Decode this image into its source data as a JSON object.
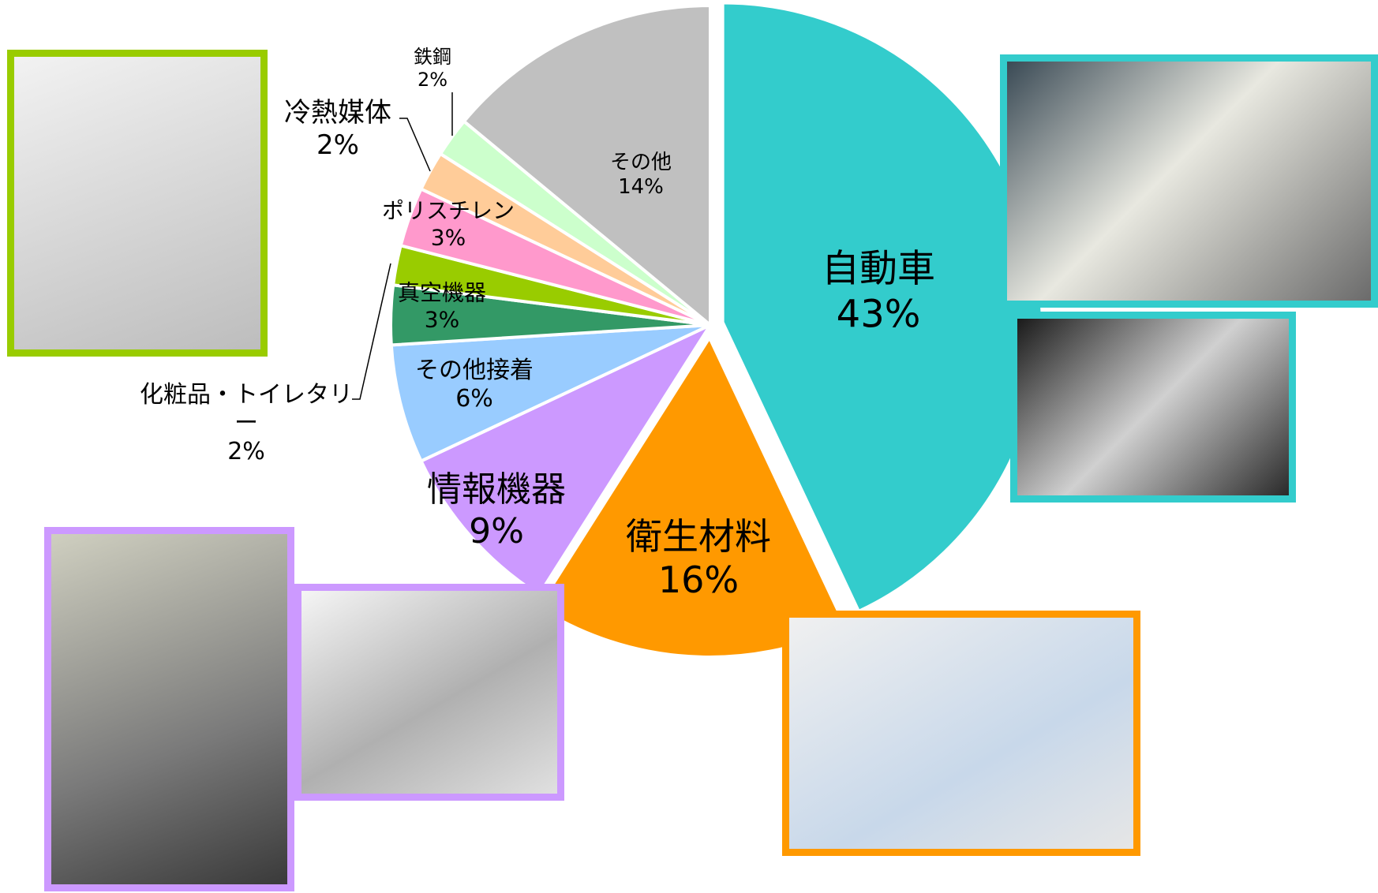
{
  "chart_data": {
    "type": "pie",
    "categories": [
      "自動車",
      "衛生材料",
      "情報機器",
      "その他接着",
      "真空機器",
      "化粧品・トイレタリー",
      "ポリスチレン",
      "冷熱媒体",
      "鉄鋼",
      "その他"
    ],
    "values": [
      43,
      16,
      9,
      6,
      3,
      2,
      3,
      2,
      2,
      14
    ],
    "value_labels": [
      "43%",
      "16%",
      "9%",
      "6%",
      "3%",
      "2%",
      "3%",
      "2%",
      "2%",
      "14%"
    ],
    "colors": [
      "#33cccc",
      "#ff9900",
      "#cc99ff",
      "#99ccff",
      "#339966",
      "#99cc00",
      "#ff99cc",
      "#ffcc99",
      "#ccffcc",
      "#c0c0c0"
    ]
  }
}
